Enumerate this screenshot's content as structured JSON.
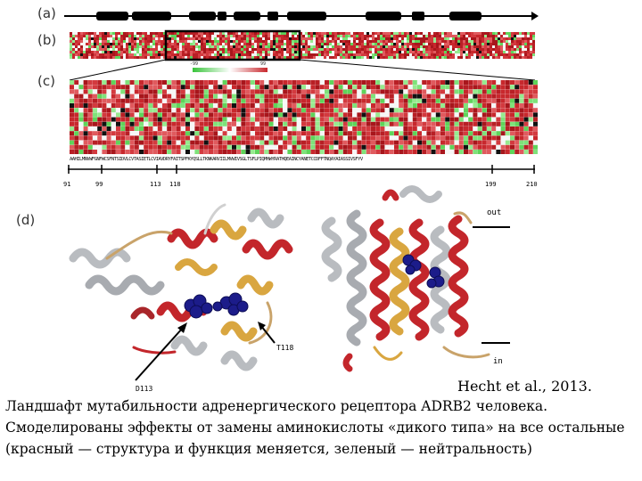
{
  "figure": {
    "panels": {
      "a": "(a)",
      "b": "(b)",
      "c": "(c)",
      "d": "(d)"
    },
    "heatmap_scale": {
      "min": "-99",
      "max": "99"
    },
    "sequence": "AAHILMNVWFGNFWCSFNTSIDVLCVTASIETLCVIAVDRYFAITSPFKYQSLLTKNKARVIILMVWIVSGLTSFLPIQMHWYRATHQEAINCYANETCCDFFTNQAYAIASSIVSFYV",
    "axis_ticks": [
      "91",
      "99",
      "113",
      "118",
      "199",
      "210"
    ],
    "structure_labels": {
      "d113": "D113",
      "t118": "T118",
      "out": "out",
      "in": "in"
    },
    "colors": {
      "destabilizing": "#c8282d",
      "neutral": "#7fe27a",
      "helix_gray": "#b9bcc0",
      "ligand": "#1c1c8a",
      "gold": "#d9a640"
    }
  },
  "credit": "Hecht et al., 2013.",
  "caption": "Ландшафт мутабильности адренергического рецептора ADRB2 человека. Смоделированы эффекты от замены аминокислоты «дикого типа» на все остальные (красный — структура и функция меняется, зеленый — нейтральность)"
}
